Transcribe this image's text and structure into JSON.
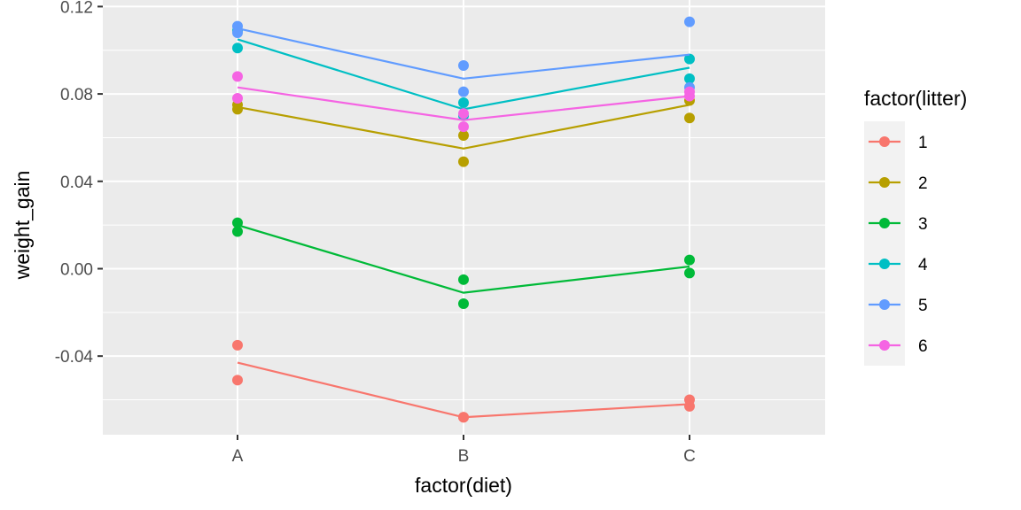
{
  "chart_data": {
    "type": "line",
    "xlabel": "factor(diet)",
    "ylabel": "weight_gain",
    "categories": [
      "A",
      "B",
      "C"
    ],
    "ylim": [
      -0.076,
      0.123
    ],
    "yticks": [
      -0.04,
      0.0,
      0.04,
      0.08,
      0.12
    ],
    "ytick_labels": [
      "-0.04",
      "0.00",
      "0.04",
      "0.08",
      "0.12"
    ],
    "grid": true,
    "legend": {
      "title": "factor(litter)",
      "placement": "right"
    },
    "series": [
      {
        "name": "1",
        "color": "#F8766D",
        "line": [
          -0.043,
          -0.068,
          -0.062
        ],
        "points": [
          [
            -0.035,
            -0.051
          ],
          [
            -0.068,
            -0.068
          ],
          [
            -0.06,
            -0.063
          ]
        ]
      },
      {
        "name": "2",
        "color": "#B79F00",
        "line": [
          0.074,
          0.055,
          0.075
        ],
        "points": [
          [
            0.075,
            0.073
          ],
          [
            0.061,
            0.049
          ],
          [
            0.077,
            0.069
          ]
        ]
      },
      {
        "name": "3",
        "color": "#00BA38",
        "line": [
          0.02,
          -0.011,
          0.001
        ],
        "points": [
          [
            0.021,
            0.017
          ],
          [
            -0.005,
            -0.016
          ],
          [
            0.004,
            -0.002
          ]
        ]
      },
      {
        "name": "4",
        "color": "#00BFC4",
        "line": [
          0.105,
          0.073,
          0.092
        ],
        "points": [
          [
            0.101,
            0.109
          ],
          [
            0.076,
            0.07
          ],
          [
            0.096,
            0.087
          ]
        ]
      },
      {
        "name": "5",
        "color": "#619CFF",
        "line": [
          0.11,
          0.087,
          0.098
        ],
        "points": [
          [
            0.111,
            0.108
          ],
          [
            0.093,
            0.081
          ],
          [
            0.113,
            0.083
          ]
        ]
      },
      {
        "name": "6",
        "color": "#F564E3",
        "line": [
          0.083,
          0.068,
          0.079
        ],
        "points": [
          [
            0.088,
            0.078
          ],
          [
            0.071,
            0.065
          ],
          [
            0.081,
            0.079
          ]
        ]
      }
    ]
  }
}
